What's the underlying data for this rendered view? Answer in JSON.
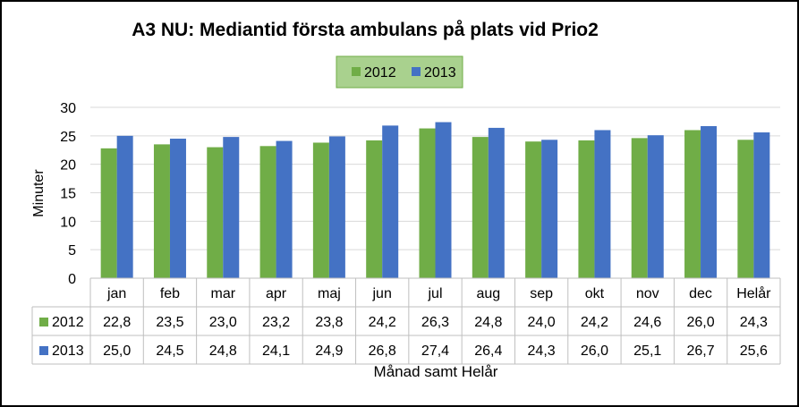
{
  "chart_data": {
    "type": "bar",
    "title": "A3 NU: Mediantid första ambulans på plats vid Prio2",
    "xlabel": "Månad samt Helår",
    "ylabel": "Minuter",
    "ylim": [
      0,
      30
    ],
    "yticks": [
      "0",
      "5",
      "10",
      "15",
      "20",
      "25",
      "30"
    ],
    "grid": true,
    "legend_position": "top-center",
    "categories": [
      "jan",
      "feb",
      "mar",
      "apr",
      "maj",
      "jun",
      "jul",
      "aug",
      "sep",
      "okt",
      "nov",
      "dec",
      "Helår"
    ],
    "series": [
      {
        "name": "2012",
        "color": "#70AD47",
        "values": [
          22.8,
          23.5,
          23.0,
          23.2,
          23.8,
          24.2,
          26.3,
          24.8,
          24.0,
          24.2,
          24.6,
          26.0,
          24.3
        ],
        "labels": [
          "22,8",
          "23,5",
          "23,0",
          "23,2",
          "23,8",
          "24,2",
          "26,3",
          "24,8",
          "24,0",
          "24,2",
          "24,6",
          "26,0",
          "24,3"
        ]
      },
      {
        "name": "2013",
        "color": "#4472C4",
        "values": [
          25.0,
          24.5,
          24.8,
          24.1,
          24.9,
          26.8,
          27.4,
          26.4,
          24.3,
          26.0,
          25.1,
          26.7,
          25.6
        ],
        "labels": [
          "25,0",
          "24,5",
          "24,8",
          "24,1",
          "24,9",
          "26,8",
          "27,4",
          "26,4",
          "24,3",
          "26,0",
          "25,1",
          "26,7",
          "25,6"
        ]
      }
    ]
  }
}
